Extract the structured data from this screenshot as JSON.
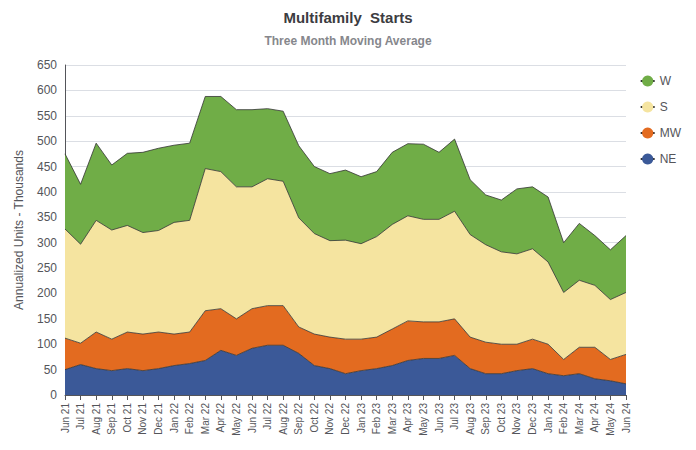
{
  "chart_data": {
    "type": "area",
    "stacked": true,
    "title": "Multifamily  Starts",
    "subtitle": "Three Month Moving Average",
    "ylabel": "Annualized Units - Thousands",
    "ylim": [
      0,
      650
    ],
    "yticks": [
      0,
      50,
      100,
      150,
      200,
      250,
      300,
      350,
      400,
      450,
      500,
      550,
      600,
      650
    ],
    "grid": true,
    "legend": "right",
    "categories": [
      "Jun 21",
      "Jul 21",
      "Aug 21",
      "Sep 21",
      "Oct 21",
      "Nov 21",
      "Dec 21",
      "Jan 22",
      "Feb 22",
      "Mar 22",
      "Apr 22",
      "May 22",
      "Jun 22",
      "Jul 22",
      "Aug 22",
      "Sep 22",
      "Oct 22",
      "Nov 22",
      "Dec 22",
      "Jan 23",
      "Feb 23",
      "Mar 23",
      "Apr 23",
      "May 23",
      "Jun 23",
      "Jul 23",
      "Aug 23",
      "Sep 23",
      "Oct 23",
      "Nov 23",
      "Dec 23",
      "Jan 24",
      "Feb 24",
      "Mar 24",
      "Apr 24",
      "May 24",
      "Jun 24"
    ],
    "series": [
      {
        "name": "NE",
        "color": "#3B5998",
        "values": [
          50,
          60,
          52,
          48,
          52,
          48,
          52,
          58,
          62,
          68,
          88,
          78,
          92,
          98,
          98,
          82,
          58,
          52,
          42,
          48,
          52,
          58,
          68,
          72,
          72,
          78,
          52,
          42,
          42,
          48,
          52,
          42,
          38,
          42,
          32,
          28,
          22
        ]
      },
      {
        "name": "MW",
        "color": "#E36B20",
        "values": [
          62,
          42,
          72,
          62,
          72,
          72,
          72,
          62,
          62,
          98,
          82,
          72,
          78,
          78,
          78,
          52,
          62,
          62,
          68,
          62,
          62,
          72,
          78,
          72,
          72,
          72,
          62,
          62,
          58,
          52,
          58,
          58,
          32,
          52,
          62,
          42,
          58
        ]
      },
      {
        "name": "S",
        "color": "#F5E4A0",
        "values": [
          215,
          195,
          220,
          215,
          210,
          200,
          200,
          220,
          220,
          280,
          270,
          260,
          240,
          250,
          245,
          215,
          198,
          190,
          195,
          188,
          198,
          206,
          207,
          202,
          202,
          212,
          202,
          192,
          182,
          178,
          178,
          162,
          132,
          132,
          122,
          118,
          122
        ]
      },
      {
        "name": "W",
        "color": "#70AD47",
        "values": [
          148,
          118,
          152,
          128,
          142,
          158,
          162,
          152,
          152,
          142,
          148,
          152,
          152,
          138,
          138,
          142,
          132,
          132,
          138,
          132,
          128,
          142,
          142,
          148,
          132,
          142,
          108,
          98,
          102,
          128,
          122,
          128,
          98,
          112,
          98,
          98,
          112
        ]
      }
    ]
  }
}
